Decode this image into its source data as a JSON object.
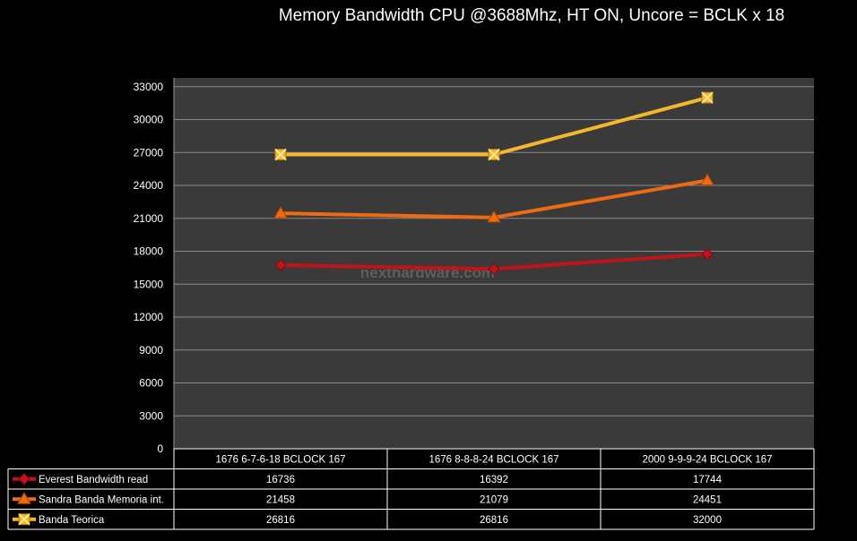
{
  "chart_data": {
    "type": "line",
    "title": "Memory Bandwidth CPU @3688Mhz, HT ON, Uncore = BCLK x 18",
    "categories": [
      "1676 6-7-6-18 BCLOCK 167",
      "1676 8-8-8-24 BCLOCK 167",
      "2000 9-9-9-24 BCLOCK 167"
    ],
    "ylim": [
      0,
      33000
    ],
    "yticks": [
      "0",
      "3000",
      "6000",
      "9000",
      "12000",
      "15000",
      "18000",
      "21000",
      "24000",
      "27000",
      "30000",
      "33000"
    ],
    "grid": true,
    "legend": "data-table",
    "plot_background": "#3a3a3a",
    "watermark": "nexthardware.com",
    "series": [
      {
        "name": "Everest Bandwidth  read",
        "values": [
          16736,
          16392,
          17744
        ],
        "color": "#c0141a",
        "marker": "diamond"
      },
      {
        "name": "Sandra Banda Memoria int.",
        "values": [
          21458,
          21079,
          24451
        ],
        "color": "#ef6a10",
        "marker": "triangle"
      },
      {
        "name": "Banda Teorica",
        "values": [
          26816,
          26816,
          32000
        ],
        "color": "#f6b82b",
        "marker": "square-x"
      }
    ]
  }
}
